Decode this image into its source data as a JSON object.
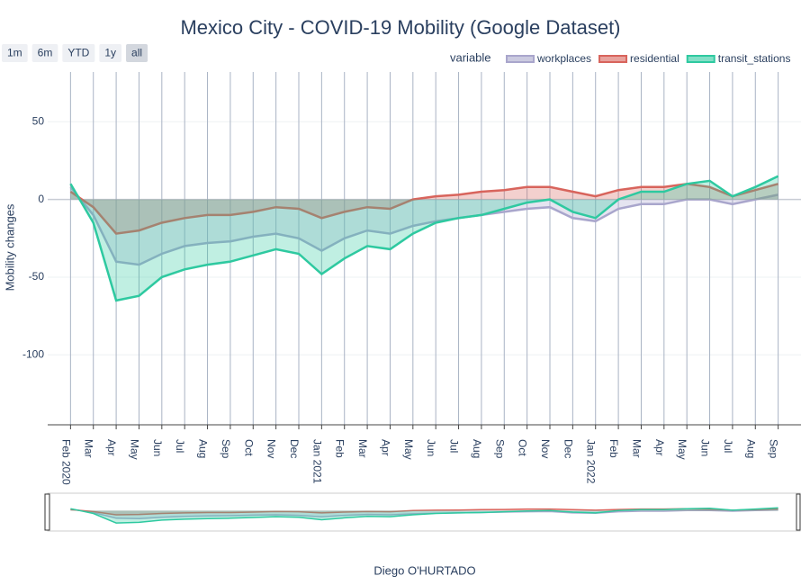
{
  "chart_data": {
    "type": "line",
    "title": "Mexico City - COVID-19 Mobility (Google Dataset)",
    "y_label": "Mobility changes",
    "x_label": "Diego O'HURTADO",
    "legend_title": "variable",
    "range_selector": [
      "1m",
      "6m",
      "YTD",
      "1y",
      "all"
    ],
    "x": [
      "2020-02",
      "2020-03",
      "2020-04",
      "2020-05",
      "2020-06",
      "2020-07",
      "2020-08",
      "2020-09",
      "2020-10",
      "2020-11",
      "2020-12",
      "2021-01",
      "2021-02",
      "2021-03",
      "2021-04",
      "2021-05",
      "2021-06",
      "2021-07",
      "2021-08",
      "2021-09",
      "2021-10",
      "2021-11",
      "2021-12",
      "2022-01",
      "2022-02",
      "2022-03",
      "2022-04",
      "2022-05",
      "2022-06",
      "2022-07",
      "2022-08",
      "2022-09"
    ],
    "series": [
      {
        "name": "workplaces",
        "color": "#a9a6cc",
        "values": [
          8,
          -10,
          -40,
          -42,
          -35,
          -30,
          -28,
          -27,
          -24,
          -22,
          -25,
          -33,
          -25,
          -20,
          -22,
          -17,
          -14,
          -12,
          -10,
          -8,
          -6,
          -5,
          -12,
          -14,
          -6,
          -3,
          -3,
          0,
          0,
          -3,
          0,
          3
        ]
      },
      {
        "name": "residential",
        "color": "#d8645c",
        "values": [
          5,
          -5,
          -22,
          -20,
          -15,
          -12,
          -10,
          -10,
          -8,
          -5,
          -6,
          -12,
          -8,
          -5,
          -6,
          0,
          2,
          3,
          5,
          6,
          8,
          8,
          5,
          2,
          6,
          8,
          8,
          10,
          8,
          2,
          6,
          10
        ]
      },
      {
        "name": "transit_stations",
        "color": "#2ec9a0",
        "values": [
          10,
          -15,
          -65,
          -62,
          -50,
          -45,
          -42,
          -40,
          -36,
          -32,
          -35,
          -48,
          -38,
          -30,
          -32,
          -22,
          -15,
          -12,
          -10,
          -6,
          -2,
          0,
          -8,
          -12,
          0,
          5,
          5,
          10,
          12,
          2,
          8,
          15
        ]
      }
    ],
    "xlim": [
      "2020-01",
      "2022-10"
    ],
    "xticks": [
      {
        "value": "2020-02",
        "label": "Feb 2020"
      },
      {
        "value": "2020-03",
        "label": "Mar"
      },
      {
        "value": "2020-04",
        "label": "Apr"
      },
      {
        "value": "2020-05",
        "label": "May"
      },
      {
        "value": "2020-06",
        "label": "Jun"
      },
      {
        "value": "2020-07",
        "label": "Jul"
      },
      {
        "value": "2020-08",
        "label": "Aug"
      },
      {
        "value": "2020-09",
        "label": "Sep"
      },
      {
        "value": "2020-10",
        "label": "Oct"
      },
      {
        "value": "2020-11",
        "label": "Nov"
      },
      {
        "value": "2020-12",
        "label": "Dec"
      },
      {
        "value": "2021-01",
        "label": "Jan 2021"
      },
      {
        "value": "2021-02",
        "label": "Feb"
      },
      {
        "value": "2021-03",
        "label": "Mar"
      },
      {
        "value": "2021-04",
        "label": "Apr"
      },
      {
        "value": "2021-05",
        "label": "May"
      },
      {
        "value": "2021-06",
        "label": "Jun"
      },
      {
        "value": "2021-07",
        "label": "Jul"
      },
      {
        "value": "2021-08",
        "label": "Aug"
      },
      {
        "value": "2021-09",
        "label": "Sep"
      },
      {
        "value": "2021-10",
        "label": "Oct"
      },
      {
        "value": "2021-11",
        "label": "Nov"
      },
      {
        "value": "2021-12",
        "label": "Dec"
      },
      {
        "value": "2022-01",
        "label": "Jan 2022"
      },
      {
        "value": "2022-02",
        "label": "Feb"
      },
      {
        "value": "2022-03",
        "label": "Mar"
      },
      {
        "value": "2022-04",
        "label": "Apr"
      },
      {
        "value": "2022-05",
        "label": "May"
      },
      {
        "value": "2022-06",
        "label": "Jun"
      },
      {
        "value": "2022-07",
        "label": "Jul"
      },
      {
        "value": "2022-08",
        "label": "Aug"
      },
      {
        "value": "2022-09",
        "label": "Sep"
      }
    ],
    "ylim": [
      -145,
      82
    ],
    "yticks": [
      -100,
      -50,
      0,
      50
    ],
    "grid": true
  }
}
